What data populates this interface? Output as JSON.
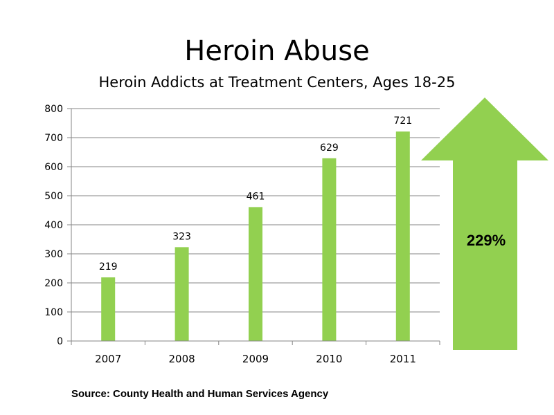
{
  "slide": {
    "title": "Heroin Abuse",
    "subtitle": "Heroin Addicts at Treatment Centers, Ages 18-25",
    "source": "Source: County Health and Human Services Agency",
    "growth_label": "229%"
  },
  "colors": {
    "bar": "#92d050",
    "arrow": "#92d050",
    "gridline": "#868686",
    "axis": "#868686"
  },
  "icons": {
    "growth_arrow": "up-arrow-icon"
  },
  "chart_data": {
    "type": "bar",
    "title": "Heroin Abuse",
    "subtitle": "Heroin Addicts at Treatment Centers, Ages 18-25",
    "xlabel": "",
    "ylabel": "",
    "categories": [
      "2007",
      "2008",
      "2009",
      "2010",
      "2011"
    ],
    "values": [
      219,
      323,
      461,
      629,
      721
    ],
    "data_labels": [
      "219",
      "323",
      "461",
      "629",
      "721"
    ],
    "ylim": [
      0,
      800
    ],
    "yticks": [
      0,
      100,
      200,
      300,
      400,
      500,
      600,
      700,
      800
    ],
    "ytick_labels": [
      "0",
      "100",
      "200",
      "300",
      "400",
      "500",
      "600",
      "700",
      "800"
    ],
    "grid": true,
    "legend": "none"
  }
}
